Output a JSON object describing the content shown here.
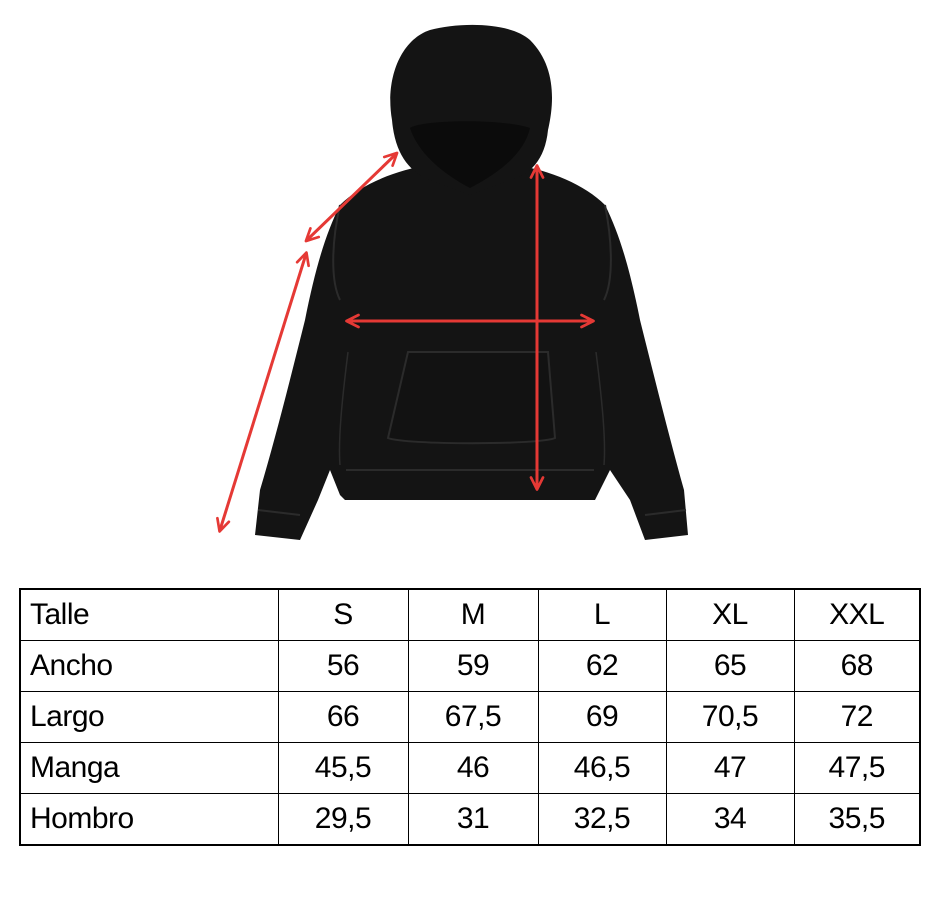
{
  "illustration": {
    "subject": "hoodie-icon",
    "garment_color": "#141414",
    "arrow_color": "#e53935"
  },
  "size_table": {
    "header": [
      "Talle",
      "S",
      "M",
      "L",
      "XL",
      "XXL"
    ],
    "rows": [
      [
        "Ancho",
        "56",
        "59",
        "62",
        "65",
        "68"
      ],
      [
        "Largo",
        "66",
        "67,5",
        "69",
        "70,5",
        "72"
      ],
      [
        "Manga",
        "45,5",
        "46",
        "46,5",
        "47",
        "47,5"
      ],
      [
        "Hombro",
        "29,5",
        "31",
        "32,5",
        "34",
        "35,5"
      ]
    ]
  }
}
